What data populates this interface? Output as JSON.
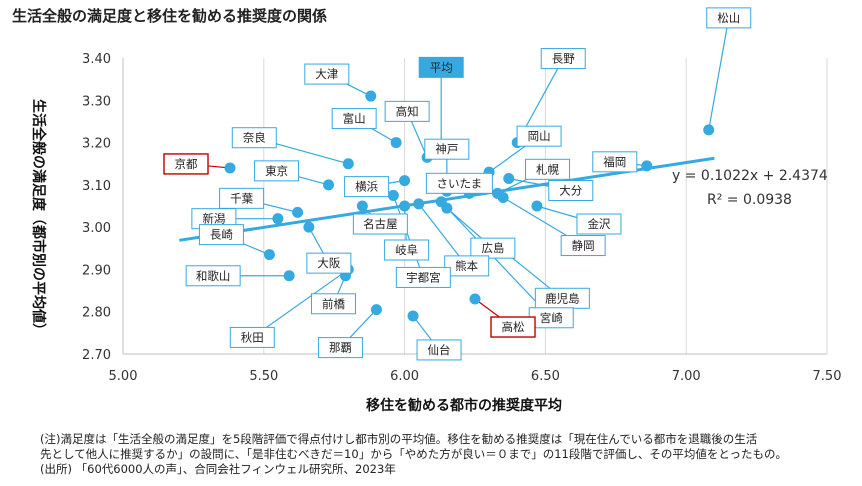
{
  "title": "生活全般の満足度と移住を勧める推奨度の関係",
  "notes": [
    "(注)満足度は「生活全般の満足度」を5段階評価で得点付けし都市別の平均値。移住を勧める推奨度は「現在住んでいる都市を退職後の生活",
    "先として他人に推奨するか」の設問に、「是非住むべきだ＝10」から「やめた方が良い＝０まで」の11段階で評価し、その平均値をとったもの。",
    "(出所) 「60代6000人の声」、合同会社フィンウェル研究所、2023年"
  ],
  "chart_data": {
    "type": "scatter",
    "title": "",
    "xlabel": "移住を勧める都市の推奨度平均",
    "ylabel": "生活全般の満足度（都市別の平均値）",
    "xlim": [
      5.0,
      7.5
    ],
    "ylim": [
      2.7,
      3.4
    ],
    "xticks": [
      "5.00",
      "5.50",
      "6.00",
      "6.50",
      "7.00",
      "7.50"
    ],
    "yticks": [
      "2.70",
      "2.80",
      "2.90",
      "3.00",
      "3.10",
      "3.20",
      "3.30",
      "3.40"
    ],
    "grid": "vertical",
    "point_color": "#36A9E1",
    "trendline": {
      "slope": 0.1022,
      "intercept": 2.4374,
      "x_from": 5.2,
      "x_to": 7.1,
      "equation": "y = 0.1022x + 2.4374",
      "r2": "R² = 0.0938"
    },
    "points": [
      {
        "label": "松山",
        "x": 7.08,
        "y": 3.23,
        "highlight": false
      },
      {
        "label": "福岡",
        "x": 6.86,
        "y": 3.145,
        "highlight": false
      },
      {
        "label": "京都",
        "x": 5.38,
        "y": 3.14,
        "highlight": true
      },
      {
        "label": "大津",
        "x": 5.88,
        "y": 3.31,
        "highlight": false
      },
      {
        "label": "奈良",
        "x": 5.8,
        "y": 3.15,
        "highlight": false
      },
      {
        "label": "東京",
        "x": 5.73,
        "y": 3.1,
        "highlight": false
      },
      {
        "label": "富山",
        "x": 5.97,
        "y": 3.2,
        "highlight": false
      },
      {
        "label": "高知",
        "x": 6.08,
        "y": 3.165,
        "highlight": false
      },
      {
        "label": "平均",
        "x": 6.13,
        "y": 3.165,
        "highlight": false
      },
      {
        "label": "長野",
        "x": 6.4,
        "y": 3.2,
        "highlight": false
      },
      {
        "label": "岡山",
        "x": 6.3,
        "y": 3.13,
        "highlight": false
      },
      {
        "label": "神戸",
        "x": 6.15,
        "y": 3.085,
        "highlight": false
      },
      {
        "label": "さいたま",
        "x": 6.23,
        "y": 3.08,
        "highlight": false
      },
      {
        "label": "札幌",
        "x": 6.33,
        "y": 3.08,
        "highlight": false
      },
      {
        "label": "大分",
        "x": 6.37,
        "y": 3.115,
        "highlight": false
      },
      {
        "label": "金沢",
        "x": 6.47,
        "y": 3.05,
        "highlight": false
      },
      {
        "label": "横浜",
        "x": 6.0,
        "y": 3.11,
        "highlight": false
      },
      {
        "label": "千葉",
        "x": 5.62,
        "y": 3.035,
        "highlight": false
      },
      {
        "label": "新潟",
        "x": 5.55,
        "y": 3.02,
        "highlight": false
      },
      {
        "label": "名古屋",
        "x": 5.85,
        "y": 3.05,
        "highlight": false
      },
      {
        "label": "大阪",
        "x": 5.66,
        "y": 3.0,
        "highlight": false
      },
      {
        "label": "長崎",
        "x": 5.52,
        "y": 2.935,
        "highlight": false
      },
      {
        "label": "岐阜",
        "x": 6.0,
        "y": 3.05,
        "highlight": false
      },
      {
        "label": "広島",
        "x": 6.15,
        "y": 3.045,
        "highlight": false
      },
      {
        "label": "熊本",
        "x": 6.05,
        "y": 3.055,
        "highlight": false
      },
      {
        "label": "静岡",
        "x": 6.35,
        "y": 3.07,
        "highlight": false
      },
      {
        "label": "鹿児島",
        "x": 6.34,
        "y": 2.95,
        "highlight": false
      },
      {
        "label": "宮崎",
        "x": 6.13,
        "y": 3.06,
        "highlight": false
      },
      {
        "label": "宇都宮",
        "x": 5.96,
        "y": 3.075,
        "highlight": false
      },
      {
        "label": "和歌山",
        "x": 5.59,
        "y": 2.885,
        "highlight": false
      },
      {
        "label": "前橋",
        "x": 5.79,
        "y": 2.885,
        "highlight": false
      },
      {
        "label": "秋田",
        "x": 5.8,
        "y": 2.9,
        "highlight": false
      },
      {
        "label": "那覇",
        "x": 5.9,
        "y": 2.805,
        "highlight": false
      },
      {
        "label": "仙台",
        "x": 6.03,
        "y": 2.79,
        "highlight": false
      },
      {
        "label": "高松",
        "x": 6.25,
        "y": 2.83,
        "highlight": true
      }
    ]
  }
}
